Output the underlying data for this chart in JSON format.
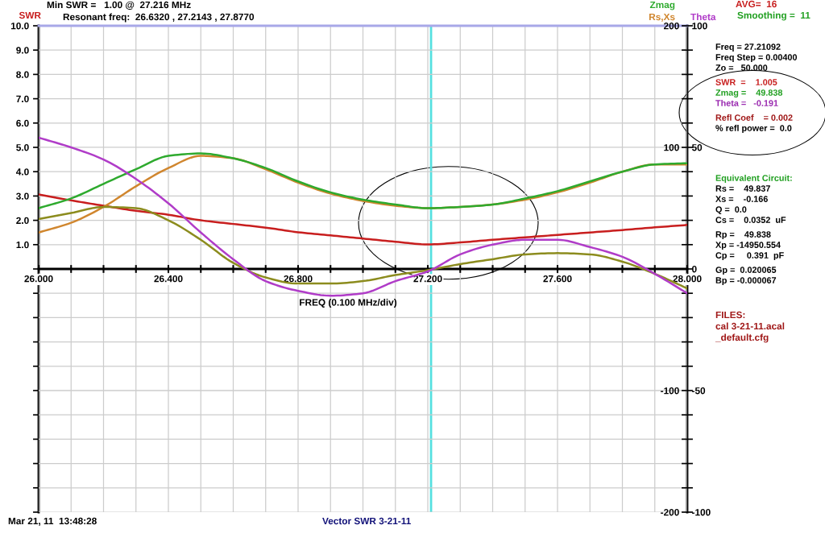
{
  "chart_data": {
    "type": "line",
    "title": "Min SWR =   1.00 @  27.216 MHz",
    "subtitle": "Resonant freq:  26.6320 , 27.2143 , 27.8770",
    "xlabel": "FREQ (0.100 MHz/div)",
    "x": [
      26.0,
      26.1,
      26.2,
      26.3,
      26.4,
      26.5,
      26.6,
      26.7,
      26.8,
      26.9,
      27.0,
      27.1,
      27.2,
      27.3,
      27.4,
      27.5,
      27.6,
      27.7,
      27.8,
      27.9,
      28.0
    ],
    "xlim": [
      26,
      28
    ],
    "xticks": [
      {
        "value": 26.0,
        "label": "26.000"
      },
      {
        "value": 26.1,
        "label": null
      },
      {
        "value": 26.2,
        "label": null
      },
      {
        "value": 26.3,
        "label": null
      },
      {
        "value": 26.4,
        "label": "26.400"
      },
      {
        "value": 26.5,
        "label": null
      },
      {
        "value": 26.6,
        "label": null
      },
      {
        "value": 26.7,
        "label": null
      },
      {
        "value": 26.8,
        "label": "26.800"
      },
      {
        "value": 26.9,
        "label": null
      },
      {
        "value": 27.0,
        "label": null
      },
      {
        "value": 27.1,
        "label": null
      },
      {
        "value": 27.2,
        "label": "27.200"
      },
      {
        "value": 27.3,
        "label": null
      },
      {
        "value": 27.4,
        "label": null
      },
      {
        "value": 27.5,
        "label": null
      },
      {
        "value": 27.6,
        "label": "27.600"
      },
      {
        "value": 27.7,
        "label": null
      },
      {
        "value": 27.8,
        "label": null
      },
      {
        "value": 27.9,
        "label": null
      },
      {
        "value": 28.0,
        "label": "28.000"
      }
    ],
    "ylim": [
      -10,
      10
    ],
    "yticks": [
      {
        "value": -10,
        "label": null
      },
      {
        "value": -9,
        "label": null
      },
      {
        "value": -8,
        "label": null
      },
      {
        "value": -7,
        "label": null
      },
      {
        "value": -6,
        "label": null
      },
      {
        "value": -5,
        "label": null
      },
      {
        "value": -4,
        "label": null
      },
      {
        "value": -3,
        "label": null
      },
      {
        "value": -2,
        "label": null
      },
      {
        "value": -1,
        "label": null
      },
      {
        "value": 0,
        "label": null
      },
      {
        "value": 1,
        "label": "1.0"
      },
      {
        "value": 2,
        "label": "2.0"
      },
      {
        "value": 3,
        "label": "3.0"
      },
      {
        "value": 4,
        "label": "4.0"
      },
      {
        "value": 5,
        "label": "5.0"
      },
      {
        "value": 6,
        "label": "6.0"
      },
      {
        "value": 7,
        "label": "7.0"
      },
      {
        "value": 8,
        "label": "8.0"
      },
      {
        "value": 9,
        "label": "9.0"
      },
      {
        "value": 10,
        "label": "10.0"
      }
    ],
    "y2lim": [
      -200,
      200
    ],
    "y2ticks": [
      -200,
      {
        "value": -180,
        "label": null
      },
      {
        "value": -160,
        "label": null
      },
      {
        "value": -140,
        "label": null
      },
      {
        "value": -120,
        "label": null
      },
      -100,
      {
        "value": -80,
        "label": null
      },
      {
        "value": -60,
        "label": null
      },
      {
        "value": -40,
        "label": null
      },
      {
        "value": -20,
        "label": null
      },
      {
        "value": 0,
        "label": null
      },
      {
        "value": 20,
        "label": null
      },
      {
        "value": 40,
        "label": null
      },
      {
        "value": 60,
        "label": null
      },
      {
        "value": 80,
        "label": null
      },
      100,
      {
        "value": 120,
        "label": null
      },
      {
        "value": 140,
        "label": null
      },
      {
        "value": 160,
        "label": null
      },
      {
        "value": 180,
        "label": null
      },
      200
    ],
    "y3lim": [
      -100,
      100
    ],
    "y3ticks": [
      -100,
      -50,
      0,
      50,
      100
    ],
    "grid": true,
    "series": [
      {
        "name": "SWR",
        "color": "#c81e1e",
        "axis": "y",
        "values": [
          3.06,
          2.82,
          2.6,
          2.39,
          2.23,
          2.0,
          1.85,
          1.7,
          1.51,
          1.38,
          1.25,
          1.12,
          1.01,
          1.09,
          1.2,
          1.3,
          1.4,
          1.5,
          1.6,
          1.71,
          1.81
        ]
      },
      {
        "name": "Rs,Xs",
        "color": "#d0862e",
        "axis": "y2",
        "values": [
          30,
          38,
          51,
          68,
          83,
          93,
          91,
          82,
          71,
          62,
          56,
          52,
          50,
          51,
          53,
          57,
          63,
          71,
          80,
          86,
          86
        ]
      },
      {
        "color": "#8c8c1e",
        "axis": "y2",
        "values": [
          41,
          46,
          51,
          50,
          40,
          24,
          5,
          -7,
          -12,
          -12,
          -10,
          -5,
          -1,
          4,
          8,
          12,
          13,
          12,
          6,
          -4,
          -16
        ]
      },
      {
        "name": "Zmag",
        "color": "#2eaa2e",
        "axis": "y2",
        "values": [
          50,
          58,
          70,
          82,
          93,
          95,
          91,
          83,
          72,
          63,
          57,
          53,
          50,
          51,
          53,
          58,
          64,
          72,
          80,
          86,
          87
        ]
      },
      {
        "name": "Theta",
        "color": "#b03cc8",
        "axis": "y3",
        "values": [
          54,
          50,
          45,
          37,
          27,
          15,
          4,
          -5,
          -9,
          -11,
          -10,
          -5,
          -1,
          6,
          10,
          12,
          12,
          9,
          5,
          -2,
          -10
        ]
      }
    ],
    "ref_lines": [
      {
        "axis": "x",
        "value": 27.21,
        "color": "#55e0e0"
      }
    ],
    "annotations": [
      "AVG=  16",
      "Smoothing =  11",
      "Freq = 27.21092",
      "Freq Step = 0.00400",
      "Zo =   50.000",
      "SWR  =    1.005",
      "Zmag =    49.838",
      "Theta =   -0.191",
      "Refl Coef    = 0.002",
      "% refl power =  0.0",
      "Equivalent Circuit:",
      "Rs =    49.837",
      "Xs =    -0.166",
      "Q =  0.0",
      "Cs =    0.0352  uF",
      "Rp =    49.838",
      "Xp = -14950.554",
      "Cp =     0.391  pF",
      "Gp =  0.020065",
      "Bp = -0.000067",
      "FILES:",
      "cal 3-21-11.acal",
      "_default.cfg",
      "Mar 21, 11  13:48:28",
      "Vector SWR 3-21-11"
    ]
  }
}
